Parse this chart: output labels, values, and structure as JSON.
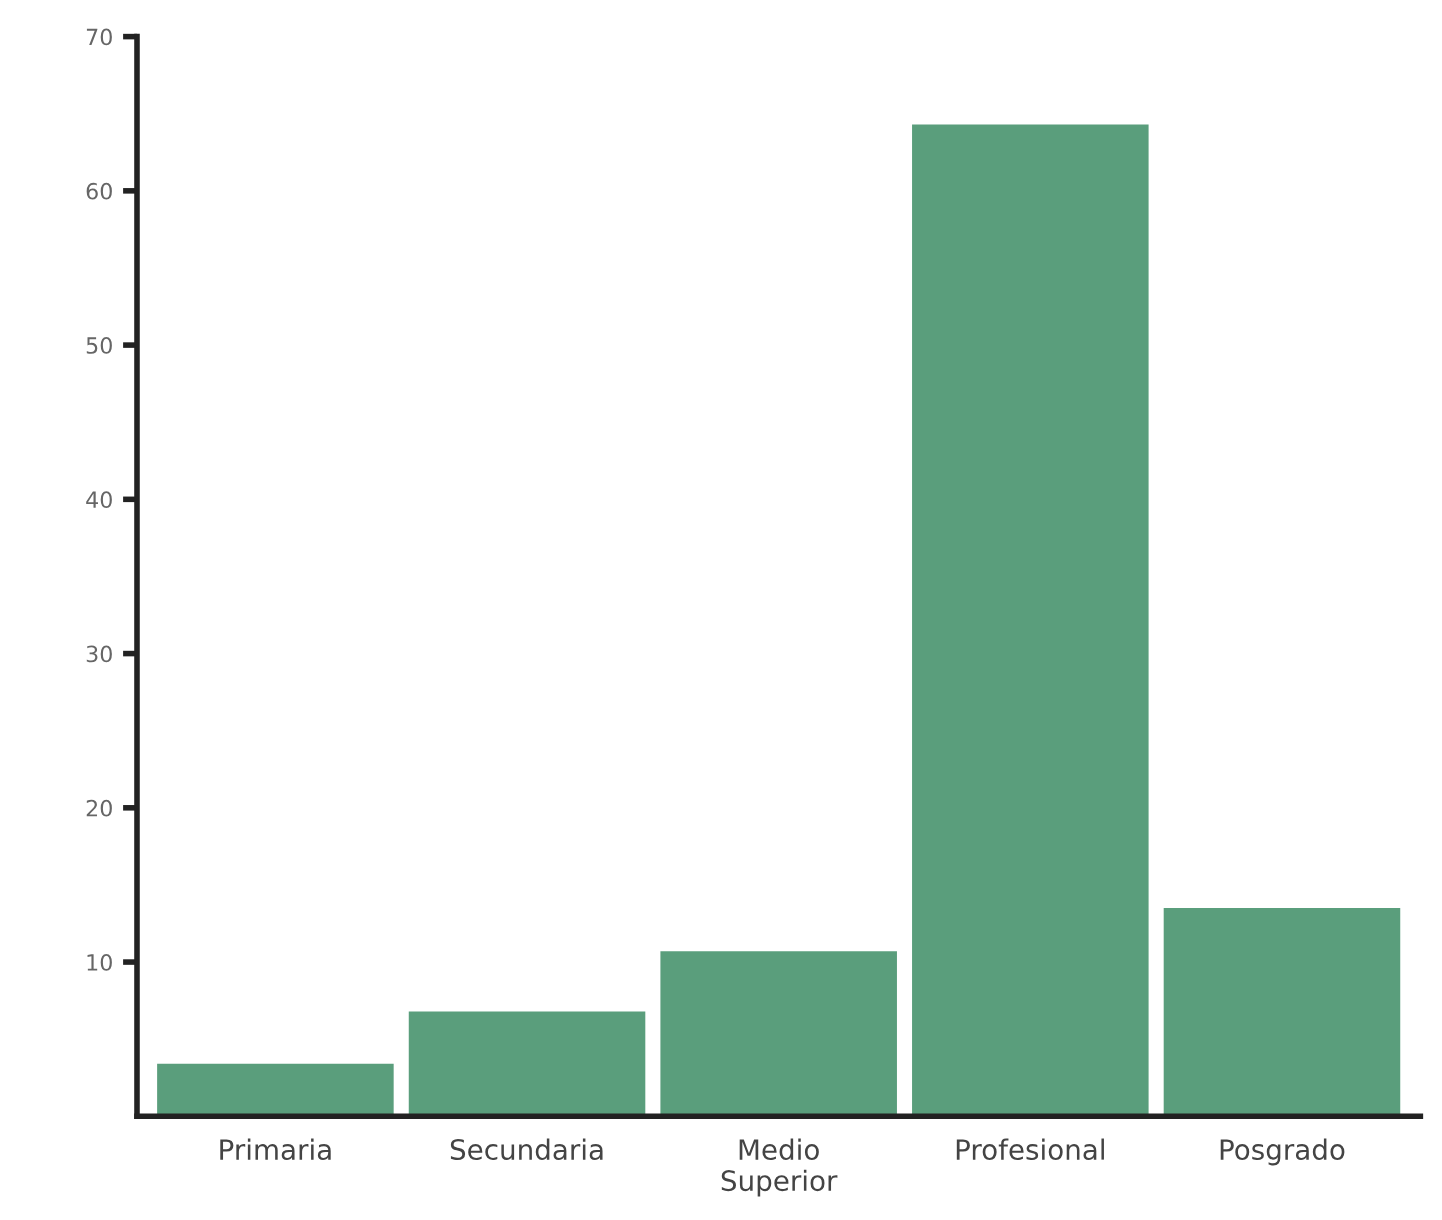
{
  "chart_data": {
    "type": "bar",
    "categories": [
      "Primaria",
      "Secundaria",
      "Medio\nSuperior",
      "Profesional",
      "Posgrado"
    ],
    "values": [
      3.4,
      6.8,
      10.7,
      64.3,
      13.5
    ],
    "color": "#5a9e7c",
    "ylim": [
      0,
      70
    ],
    "yticks": [
      10,
      20,
      30,
      40,
      50,
      60,
      70
    ],
    "grid": false,
    "legend": false
  }
}
